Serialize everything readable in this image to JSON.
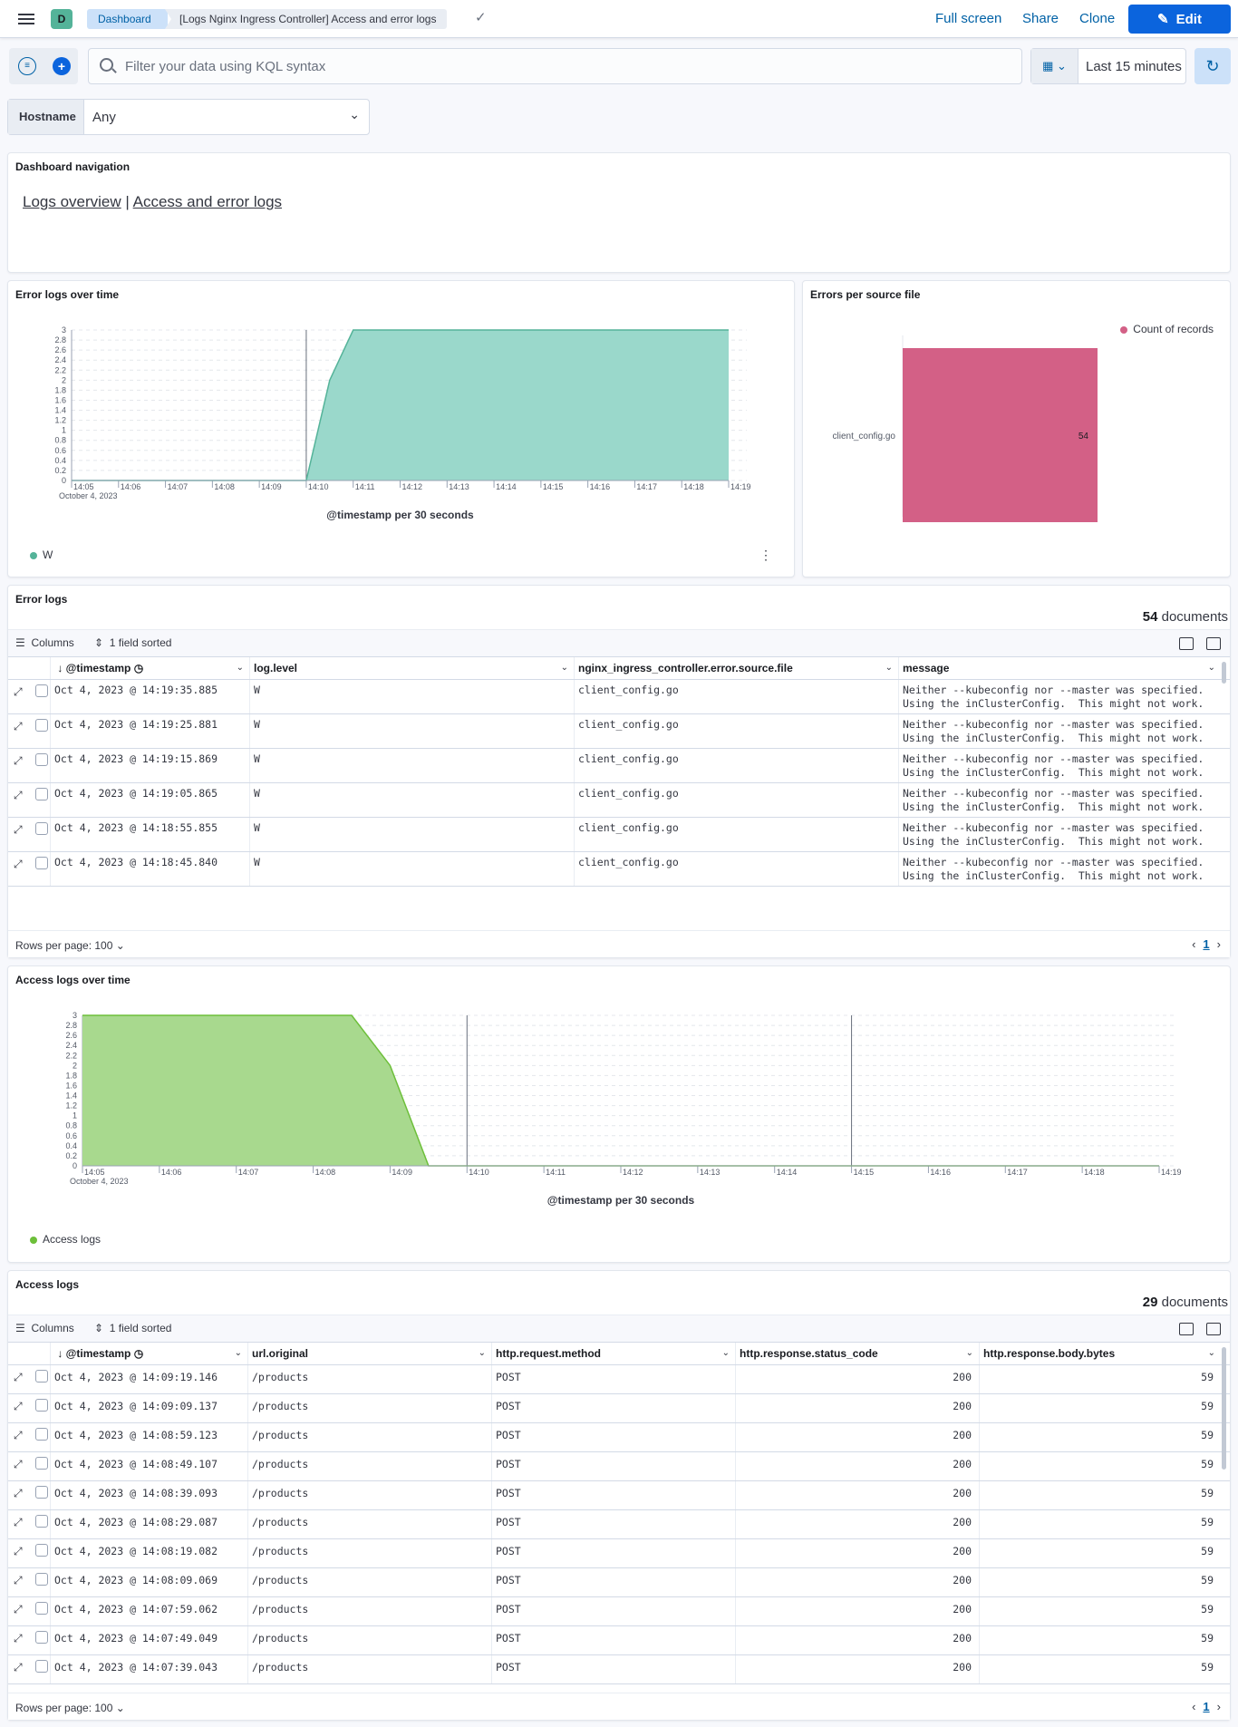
{
  "topbar": {
    "space_initial": "D",
    "breadcrumb_root": "Dashboard",
    "breadcrumb_current": "[Logs Nginx Ingress Controller] Access and error logs",
    "full_screen": "Full screen",
    "share": "Share",
    "clone": "Clone",
    "edit": "Edit"
  },
  "query": {
    "placeholder": "Filter your data using KQL syntax",
    "time_range": "Last 15 minutes"
  },
  "controls": {
    "hostname_label": "Hostname",
    "hostname_value": "Any"
  },
  "nav_panel": {
    "title": "Dashboard navigation",
    "link1": "Logs overview",
    "separator": "|",
    "link2": "Access and error logs"
  },
  "error_chart_panel": {
    "title": "Error logs over time",
    "legend": "W",
    "color": "#6dccb1"
  },
  "errors_per_file_panel": {
    "title": "Errors per source file",
    "legend": "Count of records",
    "color": "#d36086"
  },
  "error_logs": {
    "title": "Error logs",
    "count": "54",
    "count_suffix": " documents",
    "columns_label": "Columns",
    "sorted_label": "1 field sorted",
    "rows_per_page": "Rows per page: 100",
    "page": "1",
    "headers": [
      "@timestamp",
      "log.level",
      "nginx_ingress_controller.error.source.file",
      "message"
    ],
    "rows": [
      {
        "ts": "Oct 4, 2023 @ 14:19:35.885",
        "level": "W",
        "file": "client_config.go",
        "msg": "Neither --kubeconfig nor --master was specified.\nUsing the inClusterConfig.  This might not work."
      },
      {
        "ts": "Oct 4, 2023 @ 14:19:25.881",
        "level": "W",
        "file": "client_config.go",
        "msg": "Neither --kubeconfig nor --master was specified.\nUsing the inClusterConfig.  This might not work."
      },
      {
        "ts": "Oct 4, 2023 @ 14:19:15.869",
        "level": "W",
        "file": "client_config.go",
        "msg": "Neither --kubeconfig nor --master was specified.\nUsing the inClusterConfig.  This might not work."
      },
      {
        "ts": "Oct 4, 2023 @ 14:19:05.865",
        "level": "W",
        "file": "client_config.go",
        "msg": "Neither --kubeconfig nor --master was specified.\nUsing the inClusterConfig.  This might not work."
      },
      {
        "ts": "Oct 4, 2023 @ 14:18:55.855",
        "level": "W",
        "file": "client_config.go",
        "msg": "Neither --kubeconfig nor --master was specified.\nUsing the inClusterConfig.  This might not work."
      },
      {
        "ts": "Oct 4, 2023 @ 14:18:45.840",
        "level": "W",
        "file": "client_config.go",
        "msg": "Neither --kubeconfig nor --master was specified.\nUsing the inClusterConfig.  This might not work."
      }
    ]
  },
  "access_chart_panel": {
    "title": "Access logs over time",
    "legend": "Access logs",
    "color": "#7fc75f"
  },
  "access_logs": {
    "title": "Access logs",
    "count": "29",
    "count_suffix": " documents",
    "columns_label": "Columns",
    "sorted_label": "1 field sorted",
    "rows_per_page": "Rows per page: 100",
    "page": "1",
    "headers": [
      "@timestamp",
      "url.original",
      "http.request.method",
      "http.response.status_code",
      "http.response.body.bytes"
    ],
    "rows": [
      {
        "ts": "Oct 4, 2023 @ 14:09:19.146",
        "url": "/products",
        "method": "POST",
        "status": "200",
        "bytes": "59"
      },
      {
        "ts": "Oct 4, 2023 @ 14:09:09.137",
        "url": "/products",
        "method": "POST",
        "status": "200",
        "bytes": "59"
      },
      {
        "ts": "Oct 4, 2023 @ 14:08:59.123",
        "url": "/products",
        "method": "POST",
        "status": "200",
        "bytes": "59"
      },
      {
        "ts": "Oct 4, 2023 @ 14:08:49.107",
        "url": "/products",
        "method": "POST",
        "status": "200",
        "bytes": "59"
      },
      {
        "ts": "Oct 4, 2023 @ 14:08:39.093",
        "url": "/products",
        "method": "POST",
        "status": "200",
        "bytes": "59"
      },
      {
        "ts": "Oct 4, 2023 @ 14:08:29.087",
        "url": "/products",
        "method": "POST",
        "status": "200",
        "bytes": "59"
      },
      {
        "ts": "Oct 4, 2023 @ 14:08:19.082",
        "url": "/products",
        "method": "POST",
        "status": "200",
        "bytes": "59"
      },
      {
        "ts": "Oct 4, 2023 @ 14:08:09.069",
        "url": "/products",
        "method": "POST",
        "status": "200",
        "bytes": "59"
      },
      {
        "ts": "Oct 4, 2023 @ 14:07:59.062",
        "url": "/products",
        "method": "POST",
        "status": "200",
        "bytes": "59"
      },
      {
        "ts": "Oct 4, 2023 @ 14:07:49.049",
        "url": "/products",
        "method": "POST",
        "status": "200",
        "bytes": "59"
      },
      {
        "ts": "Oct 4, 2023 @ 14:07:39.043",
        "url": "/products",
        "method": "POST",
        "status": "200",
        "bytes": "59"
      }
    ]
  },
  "chart_data": [
    {
      "type": "area",
      "xlabel": "@timestamp per 30 seconds",
      "date_label": "October 4, 2023",
      "x_ticks": [
        "14:05",
        "14:06",
        "14:07",
        "14:08",
        "14:09",
        "14:10",
        "14:11",
        "14:12",
        "14:13",
        "14:14",
        "14:15",
        "14:16",
        "14:17",
        "14:18",
        "14:19"
      ],
      "y_ticks": [
        "0",
        "0.2",
        "0.4",
        "0.6",
        "0.8",
        "1",
        "1.2",
        "1.4",
        "1.6",
        "1.8",
        "2",
        "2.2",
        "2.4",
        "2.6",
        "2.8",
        "3"
      ],
      "ylim": [
        0,
        3
      ],
      "series": [
        {
          "name": "W",
          "x": [
            "14:05",
            "14:10",
            "14:10:30",
            "14:11",
            "14:19"
          ],
          "values": [
            0,
            0,
            2,
            3,
            3
          ]
        }
      ],
      "grid": true
    },
    {
      "type": "bar",
      "categories": [
        "client_config.go"
      ],
      "values": [
        54
      ],
      "series": [
        {
          "name": "Count of records",
          "values": [
            54
          ]
        }
      ],
      "orientation": "horizontal",
      "legend_position": "top-right"
    },
    {
      "type": "area",
      "xlabel": "@timestamp per 30 seconds",
      "date_label": "October 4, 2023",
      "x_ticks": [
        "14:05",
        "14:06",
        "14:07",
        "14:08",
        "14:09",
        "14:10",
        "14:11",
        "14:12",
        "14:13",
        "14:14",
        "14:15",
        "14:16",
        "14:17",
        "14:18",
        "14:19"
      ],
      "y_ticks": [
        "0",
        "0.2",
        "0.4",
        "0.6",
        "0.8",
        "1",
        "1.2",
        "1.4",
        "1.6",
        "1.8",
        "2",
        "2.2",
        "2.4",
        "2.6",
        "2.8",
        "3"
      ],
      "ylim": [
        0,
        3
      ],
      "series": [
        {
          "name": "Access logs",
          "x": [
            "14:05",
            "14:08:30",
            "14:09",
            "14:09:30",
            "14:19"
          ],
          "values": [
            3,
            3,
            2,
            0,
            0
          ]
        }
      ],
      "grid": true
    }
  ]
}
